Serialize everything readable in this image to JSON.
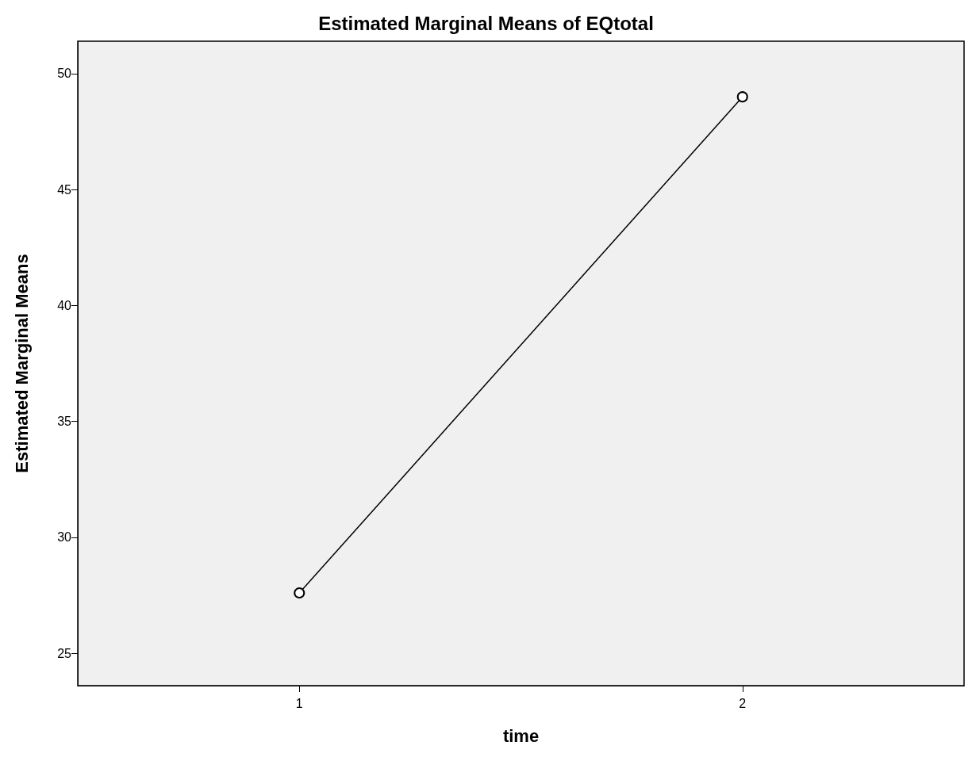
{
  "chart_data": {
    "type": "line",
    "title": "Estimated Marginal Means of EQtotal",
    "xlabel": "time",
    "ylabel": "Estimated Marginal Means",
    "categories": [
      "1",
      "2"
    ],
    "values": [
      27.6,
      49.0
    ],
    "color": "#000000",
    "ylim": [
      23.6,
      51.4
    ],
    "yticks": [
      25,
      30,
      35,
      40,
      45,
      50
    ],
    "marker": "circle",
    "grid": false
  }
}
